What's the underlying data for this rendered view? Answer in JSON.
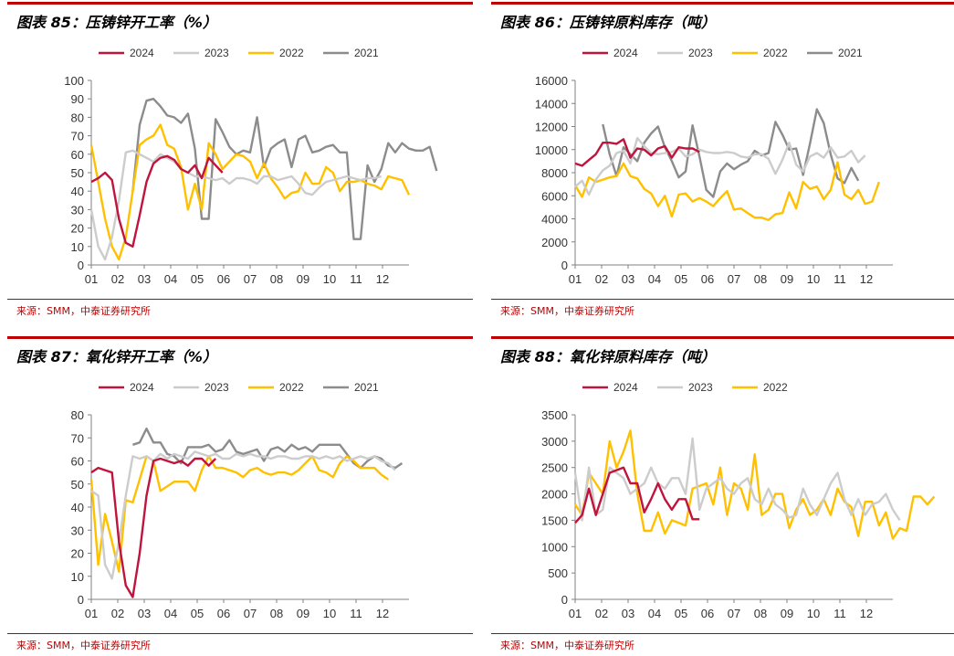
{
  "colors": {
    "s2024": "#c0143c",
    "s2023": "#cccccc",
    "s2022": "#ffc000",
    "s2021": "#8c8c8c",
    "accent": "#c00000"
  },
  "chart_data": [
    {
      "type": "line",
      "title": "图表 85：压铸锌开工率（%）",
      "source": "来源：SMM，中泰证券研究所",
      "xticks": [
        "01",
        "02",
        "03",
        "04",
        "05",
        "06",
        "07",
        "08",
        "09",
        "10",
        "11",
        "12"
      ],
      "ylim": [
        0,
        100
      ],
      "yticks": [
        0,
        10,
        20,
        30,
        40,
        50,
        60,
        70,
        80,
        90,
        100
      ],
      "legend": "top",
      "series": [
        {
          "name": "2024",
          "color": "#c0143c",
          "values": [
            45,
            47,
            50,
            46,
            25,
            12,
            10,
            27,
            45,
            55,
            58,
            59,
            57,
            52,
            50,
            54,
            47,
            58,
            54,
            50
          ]
        },
        {
          "name": "2023",
          "color": "#cccccc",
          "values": [
            30,
            10,
            3,
            15,
            35,
            61,
            62,
            60,
            58,
            56,
            60,
            58,
            56,
            52,
            50,
            48,
            48,
            47,
            46,
            47,
            44,
            47,
            47,
            46,
            44,
            48,
            48,
            46,
            47,
            48,
            44,
            39,
            38,
            42,
            45,
            46,
            47,
            48,
            47,
            46,
            47,
            47,
            48
          ]
        },
        {
          "name": "2022",
          "color": "#ffc000",
          "values": [
            65,
            45,
            25,
            10,
            3,
            15,
            40,
            65,
            68,
            70,
            76,
            65,
            63,
            53,
            30,
            44,
            30,
            66,
            60,
            52,
            56,
            60,
            59,
            56,
            47,
            55,
            47,
            42,
            36,
            39,
            40,
            50,
            44,
            44,
            53,
            50,
            40,
            45,
            45,
            46,
            44,
            43,
            41,
            48,
            47,
            46,
            38
          ]
        },
        {
          "name": "2021",
          "color": "#8c8c8c",
          "values": [
            null,
            null,
            null,
            null,
            null,
            null,
            40,
            76,
            89,
            90,
            86,
            81,
            80,
            77,
            82,
            63,
            25,
            25,
            79,
            72,
            64,
            60,
            62,
            61,
            80,
            53,
            63,
            66,
            68,
            53,
            68,
            70,
            61,
            62,
            64,
            65,
            61,
            61,
            14,
            14,
            54,
            45,
            52,
            66,
            61,
            66,
            63,
            62,
            62,
            64,
            51
          ]
        }
      ]
    },
    {
      "type": "line",
      "title": "图表 86：压铸锌原料库存（吨）",
      "source": "来源：SMM，中泰证券研究所",
      "xticks": [
        "01",
        "02",
        "03",
        "04",
        "05",
        "06",
        "07",
        "08",
        "09",
        "10",
        "11",
        "12"
      ],
      "ylim": [
        0,
        16000
      ],
      "yticks": [
        0,
        2000,
        4000,
        6000,
        8000,
        10000,
        12000,
        14000,
        16000
      ],
      "legend": "top",
      "series": [
        {
          "name": "2024",
          "color": "#c0143c",
          "values": [
            8800,
            8600,
            9100,
            9600,
            10600,
            10600,
            10500,
            10900,
            9300,
            10100,
            10000,
            9500,
            10100,
            10300,
            9300,
            10200,
            10100,
            10100,
            9800
          ]
        },
        {
          "name": "2023",
          "color": "#cccccc",
          "values": [
            6800,
            7300,
            6100,
            7400,
            8200,
            8600,
            9700,
            9900,
            8800,
            11000,
            10300,
            9700,
            9600,
            9700,
            9800,
            10100,
            9400,
            9600,
            10000,
            9800,
            9700,
            9700,
            9800,
            9700,
            9400,
            9300,
            9600,
            9600,
            9200,
            7900,
            9100,
            10600,
            8700,
            8100,
            9400,
            9700,
            9300,
            10200,
            9300,
            9400,
            9900,
            8900,
            9500
          ]
        },
        {
          "name": "2022",
          "color": "#ffc000",
          "values": [
            6900,
            5900,
            7600,
            7200,
            7400,
            7600,
            7700,
            8800,
            7700,
            7500,
            6600,
            6200,
            5100,
            6000,
            4200,
            6100,
            6200,
            5500,
            5800,
            5500,
            5100,
            5800,
            6400,
            4800,
            4900,
            4500,
            4100,
            4100,
            3900,
            4400,
            4500,
            6300,
            4900,
            7200,
            6600,
            6800,
            5700,
            6500,
            8900,
            6100,
            5700,
            6500,
            5300,
            5500,
            7200
          ]
        },
        {
          "name": "2021",
          "color": "#8c8c8c",
          "values": [
            null,
            null,
            null,
            null,
            12200,
            9600,
            7700,
            10200,
            9600,
            9000,
            10600,
            11400,
            12000,
            10200,
            9000,
            7600,
            8100,
            12100,
            9400,
            6500,
            5900,
            8100,
            8800,
            8300,
            8700,
            9000,
            9900,
            9500,
            9700,
            12400,
            11300,
            10000,
            10100,
            7800,
            10500,
            13500,
            12300,
            9600,
            7500,
            7100,
            8400,
            7300
          ]
        }
      ]
    },
    {
      "type": "line",
      "title": "图表 87：氧化锌开工率（%）",
      "source": "来源：SMM，中泰证券研究所",
      "xticks": [
        "01",
        "02",
        "03",
        "04",
        "05",
        "06",
        "07",
        "08",
        "09",
        "10",
        "11",
        "12"
      ],
      "ylim": [
        0,
        80
      ],
      "yticks": [
        0,
        10,
        20,
        30,
        40,
        50,
        60,
        70,
        80
      ],
      "legend": "top",
      "series": [
        {
          "name": "2024",
          "color": "#c0143c",
          "values": [
            55,
            57,
            56,
            55,
            25,
            6,
            1,
            20,
            45,
            60,
            61,
            60,
            59,
            60,
            58,
            61,
            61,
            58,
            61
          ]
        },
        {
          "name": "2023",
          "color": "#cccccc",
          "values": [
            47,
            45,
            15,
            9,
            25,
            45,
            62,
            61,
            62,
            60,
            63,
            61,
            63,
            62,
            61,
            64,
            63,
            62,
            63,
            61,
            61,
            63,
            62,
            63,
            62,
            62,
            61,
            62,
            62,
            61,
            61,
            62,
            62,
            61,
            62,
            61,
            62,
            60,
            61,
            62,
            61,
            62,
            60,
            59,
            56
          ]
        },
        {
          "name": "2022",
          "color": "#ffc000",
          "values": [
            52,
            15,
            37,
            25,
            12,
            43,
            42,
            52,
            62,
            60,
            47,
            49,
            51,
            51,
            51,
            47,
            56,
            62,
            57,
            57,
            56,
            55,
            53,
            56,
            57,
            55,
            54,
            55,
            55,
            54,
            56,
            59,
            62,
            56,
            55,
            53,
            59,
            62,
            60,
            57,
            57,
            57,
            54,
            52
          ]
        },
        {
          "name": "2021",
          "color": "#8c8c8c",
          "values": [
            null,
            null,
            null,
            null,
            null,
            null,
            67,
            68,
            74,
            68,
            68,
            63,
            62,
            59,
            66,
            66,
            66,
            67,
            64,
            65,
            69,
            64,
            63,
            64,
            65,
            60,
            65,
            66,
            64,
            67,
            65,
            66,
            64,
            67,
            67,
            67,
            67,
            63,
            59,
            57,
            60,
            62,
            61,
            58,
            57,
            59
          ]
        }
      ]
    },
    {
      "type": "line",
      "title": "图表 88：氧化锌原料库存（吨）",
      "source": "来源：SMM，中泰证券研究所",
      "xticks": [
        "01",
        "02",
        "03",
        "04",
        "05",
        "06",
        "07",
        "08",
        "09",
        "10",
        "11",
        "12"
      ],
      "ylim": [
        0,
        3500
      ],
      "yticks": [
        0,
        500,
        1000,
        1500,
        2000,
        2500,
        3000,
        3500
      ],
      "legend": "top",
      "series": [
        {
          "name": "2024",
          "color": "#c0143c",
          "values": [
            1450,
            1600,
            2100,
            1600,
            2000,
            2400,
            2450,
            2500,
            2200,
            2200,
            1650,
            1900,
            2200,
            1900,
            1700,
            1900,
            1900,
            1520,
            1520
          ]
        },
        {
          "name": "2023",
          "color": "#cccccc",
          "values": [
            2400,
            1500,
            2500,
            1600,
            1700,
            2500,
            2400,
            2300,
            2000,
            2100,
            2200,
            2500,
            2200,
            2100,
            2300,
            2300,
            2000,
            3050,
            1700,
            2100,
            2200,
            2300,
            2100,
            2000,
            2200,
            2300,
            1900,
            1800,
            2100,
            1800,
            1700,
            1550,
            1600,
            2100,
            1800,
            1600,
            1900,
            2200,
            2400,
            1900,
            1600,
            1900,
            1600,
            1800,
            1850,
            2000,
            1700,
            1500
          ]
        },
        {
          "name": "2022",
          "color": "#ffc000",
          "values": [
            1800,
            1600,
            2400,
            2200,
            2000,
            3000,
            2500,
            2800,
            3200,
            2000,
            1300,
            1300,
            1650,
            1250,
            1500,
            1450,
            1400,
            2100,
            2150,
            2200,
            1800,
            2500,
            1600,
            2200,
            2100,
            1700,
            2750,
            1600,
            1700,
            2000,
            2000,
            1350,
            1700,
            1900,
            1600,
            1700,
            1900,
            1600,
            2100,
            1850,
            1750,
            1200,
            1850,
            1850,
            1400,
            1650,
            1150,
            1350,
            1300,
            1950,
            1950,
            1800,
            1950
          ]
        }
      ]
    }
  ]
}
